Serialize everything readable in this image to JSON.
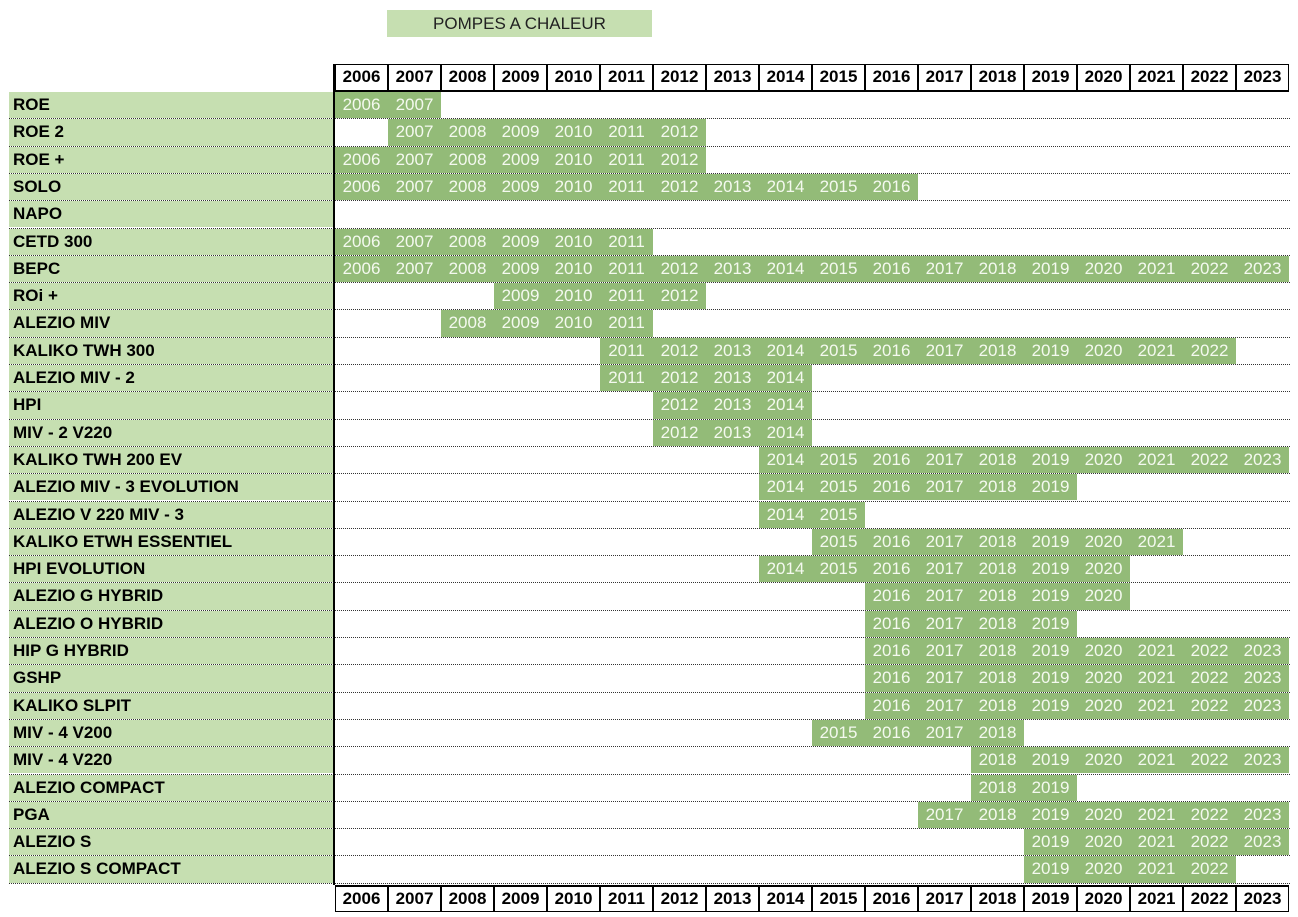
{
  "title": "POMPES A CHALEUR",
  "years": [
    "2006",
    "2007",
    "2008",
    "2009",
    "2010",
    "2011",
    "2012",
    "2013",
    "2014",
    "2015",
    "2016",
    "2017",
    "2018",
    "2019",
    "2020",
    "2021",
    "2022",
    "2023"
  ],
  "rows": [
    {
      "name": "ROE",
      "from": "2006",
      "to": "2007"
    },
    {
      "name": "ROE 2",
      "from": "2007",
      "to": "2012"
    },
    {
      "name": "ROE +",
      "from": "2006",
      "to": "2012"
    },
    {
      "name": "SOLO",
      "from": "2006",
      "to": "2016"
    },
    {
      "name": "NAPO",
      "from": null,
      "to": null
    },
    {
      "name": "CETD 300",
      "from": "2006",
      "to": "2011"
    },
    {
      "name": "BEPC",
      "from": "2006",
      "to": "2023"
    },
    {
      "name": "ROi +",
      "from": "2009",
      "to": "2012"
    },
    {
      "name": "ALEZIO MIV",
      "from": "2008",
      "to": "2011"
    },
    {
      "name": "KALIKO TWH 300",
      "from": "2011",
      "to": "2022"
    },
    {
      "name": "ALEZIO MIV - 2",
      "from": "2011",
      "to": "2014"
    },
    {
      "name": "HPI",
      "from": "2012",
      "to": "2014"
    },
    {
      "name": "MIV - 2  V220",
      "from": "2012",
      "to": "2014"
    },
    {
      "name": "KALIKO TWH 200 EV",
      "from": "2014",
      "to": "2023"
    },
    {
      "name": "ALEZIO MIV - 3 EVOLUTION",
      "from": "2014",
      "to": "2019"
    },
    {
      "name": "ALEZIO V 220 MIV - 3",
      "from": "2014",
      "to": "2015"
    },
    {
      "name": "KALIKO ETWH ESSENTIEL",
      "from": "2015",
      "to": "2021"
    },
    {
      "name": "HPI EVOLUTION",
      "from": "2014",
      "to": "2020"
    },
    {
      "name": "ALEZIO G HYBRID",
      "from": "2016",
      "to": "2020"
    },
    {
      "name": "ALEZIO O HYBRID",
      "from": "2016",
      "to": "2019"
    },
    {
      "name": "HIP  G HYBRID",
      "from": "2016",
      "to": "2023"
    },
    {
      "name": "GSHP",
      "from": "2016",
      "to": "2023"
    },
    {
      "name": "KALIKO SLPIT",
      "from": "2016",
      "to": "2023"
    },
    {
      "name": "MIV  - 4 V200",
      "from": "2015",
      "to": "2018"
    },
    {
      "name": "MIV - 4 V220",
      "from": "2018",
      "to": "2023"
    },
    {
      "name": "ALEZIO COMPACT",
      "from": "2018",
      "to": "2019"
    },
    {
      "name": "PGA",
      "from": "2017",
      "to": "2023"
    },
    {
      "name": "ALEZIO S",
      "from": "2019",
      "to": "2023"
    },
    {
      "name": "ALEZIO S COMPACT",
      "from": "2019",
      "to": "2022"
    }
  ]
}
